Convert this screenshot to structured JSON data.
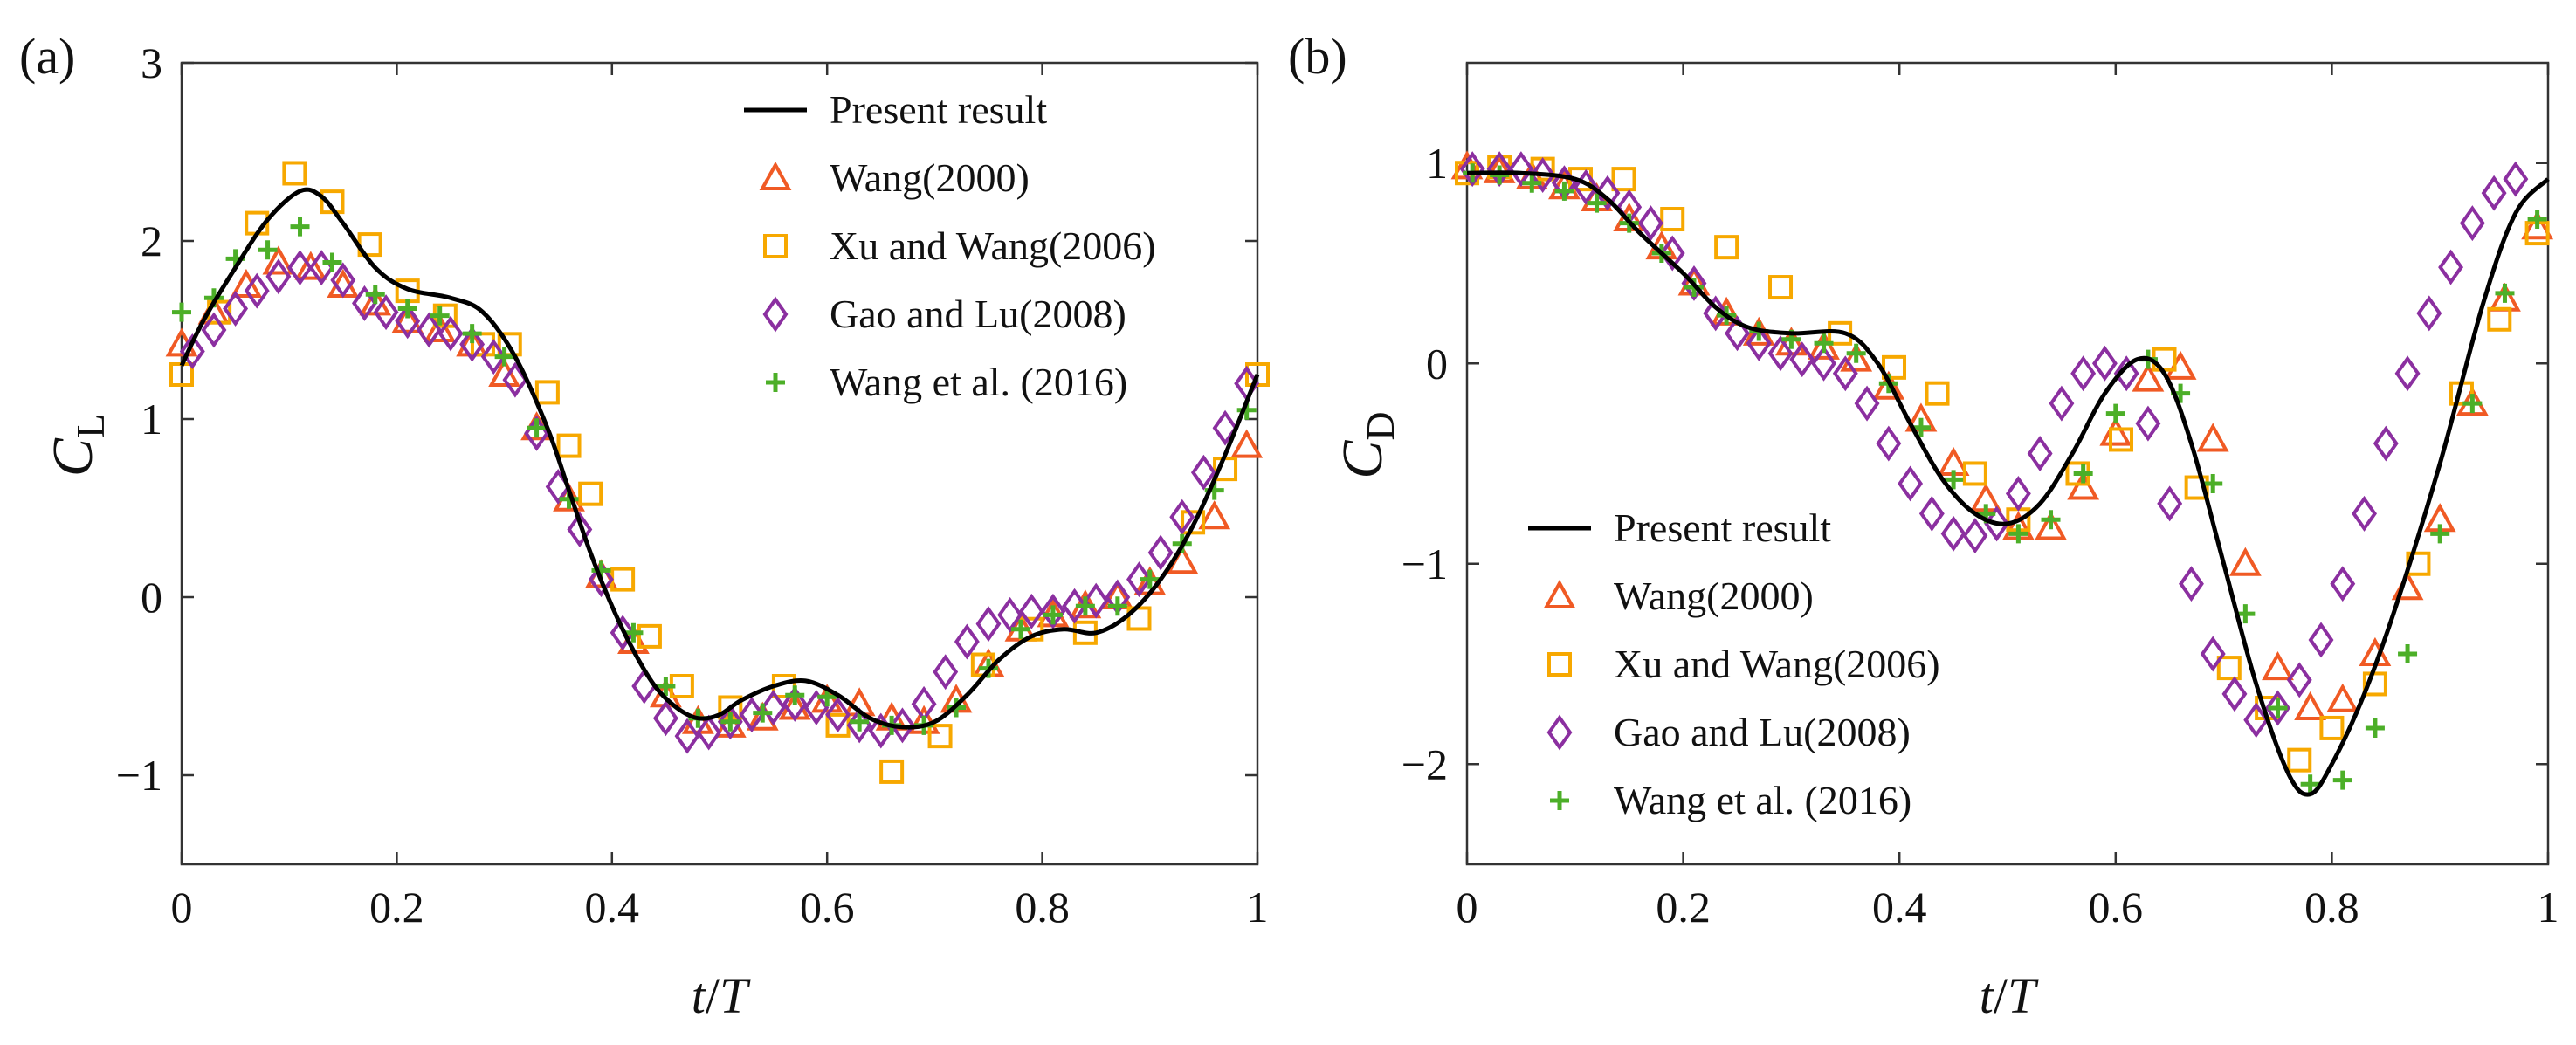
{
  "chart_data": [
    {
      "type": "line",
      "panel_label": "(a)",
      "ylabel_main": "C",
      "ylabel_sub": "L",
      "xlabel_t": "t",
      "xlabel_sep": "/",
      "xlabel_T": "T",
      "xlim": [
        0,
        1
      ],
      "ylim": [
        -1.5,
        3
      ],
      "xticks": [
        0,
        0.2,
        0.4,
        0.6,
        0.8,
        1
      ],
      "xtick_labels": [
        "0",
        "0.2",
        "0.4",
        "0.6",
        "0.8",
        "1"
      ],
      "yticks": [
        -1,
        0,
        1,
        2,
        3
      ],
      "ytick_labels": [
        "−1",
        "0",
        "1",
        "2",
        "3"
      ],
      "legend_position": "top-right",
      "series": [
        {
          "name": "Present result",
          "marker": "line",
          "color": "#000000",
          "x": [
            0,
            0.02,
            0.05,
            0.08,
            0.11,
            0.13,
            0.15,
            0.18,
            0.21,
            0.25,
            0.28,
            0.31,
            0.34,
            0.36,
            0.38,
            0.4,
            0.42,
            0.44,
            0.46,
            0.48,
            0.5,
            0.52,
            0.55,
            0.58,
            0.61,
            0.64,
            0.67,
            0.7,
            0.73,
            0.76,
            0.79,
            0.82,
            0.85,
            0.88,
            0.91,
            0.94,
            0.97,
            1.0
          ],
          "y": [
            1.3,
            1.55,
            1.85,
            2.12,
            2.28,
            2.25,
            2.1,
            1.85,
            1.73,
            1.68,
            1.6,
            1.35,
            0.95,
            0.6,
            0.25,
            -0.05,
            -0.3,
            -0.5,
            -0.62,
            -0.68,
            -0.66,
            -0.58,
            -0.5,
            -0.47,
            -0.55,
            -0.68,
            -0.73,
            -0.7,
            -0.55,
            -0.35,
            -0.22,
            -0.18,
            -0.2,
            -0.1,
            0.1,
            0.4,
            0.8,
            1.25
          ]
        },
        {
          "name": "Wang(2000)",
          "marker": "triangle",
          "color": "#f05a24",
          "x": [
            0,
            0.03,
            0.06,
            0.09,
            0.12,
            0.15,
            0.18,
            0.21,
            0.24,
            0.27,
            0.3,
            0.33,
            0.36,
            0.39,
            0.42,
            0.45,
            0.48,
            0.51,
            0.54,
            0.57,
            0.6,
            0.63,
            0.66,
            0.69,
            0.72,
            0.75,
            0.78,
            0.81,
            0.84,
            0.87,
            0.9,
            0.93,
            0.96,
            0.99
          ],
          "y": [
            1.42,
            1.6,
            1.75,
            1.88,
            1.85,
            1.75,
            1.65,
            1.55,
            1.5,
            1.42,
            1.25,
            0.95,
            0.55,
            0.12,
            -0.25,
            -0.55,
            -0.7,
            -0.72,
            -0.68,
            -0.62,
            -0.58,
            -0.6,
            -0.68,
            -0.7,
            -0.58,
            -0.38,
            -0.18,
            -0.1,
            -0.05,
            0.0,
            0.08,
            0.2,
            0.45,
            0.85
          ]
        },
        {
          "name": "Xu and Wang(2006)",
          "marker": "square",
          "color": "#f7a800",
          "x": [
            0,
            0.035,
            0.07,
            0.105,
            0.14,
            0.175,
            0.21,
            0.245,
            0.28,
            0.305,
            0.34,
            0.36,
            0.38,
            0.41,
            0.435,
            0.465,
            0.51,
            0.56,
            0.61,
            0.66,
            0.705,
            0.745,
            0.79,
            0.84,
            0.89,
            0.94,
            0.97,
            1.0
          ],
          "y": [
            1.25,
            1.6,
            2.1,
            2.38,
            2.22,
            1.98,
            1.72,
            1.58,
            1.42,
            1.42,
            1.15,
            0.85,
            0.58,
            0.1,
            -0.22,
            -0.5,
            -0.62,
            -0.5,
            -0.72,
            -0.98,
            -0.78,
            -0.38,
            -0.18,
            -0.2,
            -0.12,
            0.42,
            0.72,
            1.25
          ]
        },
        {
          "name": "Gao and Lu(2008)",
          "marker": "diamond",
          "color": "#8b2fa0",
          "x": [
            0.01,
            0.03,
            0.05,
            0.07,
            0.09,
            0.11,
            0.13,
            0.15,
            0.17,
            0.19,
            0.21,
            0.23,
            0.25,
            0.27,
            0.29,
            0.31,
            0.33,
            0.35,
            0.37,
            0.39,
            0.41,
            0.43,
            0.45,
            0.47,
            0.49,
            0.51,
            0.53,
            0.55,
            0.57,
            0.59,
            0.61,
            0.63,
            0.65,
            0.67,
            0.69,
            0.71,
            0.73,
            0.75,
            0.77,
            0.79,
            0.81,
            0.83,
            0.85,
            0.87,
            0.89,
            0.91,
            0.93,
            0.95,
            0.97,
            0.99
          ],
          "y": [
            1.38,
            1.5,
            1.62,
            1.72,
            1.8,
            1.85,
            1.85,
            1.78,
            1.65,
            1.6,
            1.55,
            1.5,
            1.48,
            1.42,
            1.35,
            1.22,
            0.92,
            0.62,
            0.38,
            0.1,
            -0.2,
            -0.5,
            -0.68,
            -0.78,
            -0.76,
            -0.7,
            -0.66,
            -0.62,
            -0.6,
            -0.62,
            -0.66,
            -0.72,
            -0.75,
            -0.72,
            -0.6,
            -0.42,
            -0.25,
            -0.15,
            -0.1,
            -0.08,
            -0.08,
            -0.05,
            -0.02,
            0.0,
            0.1,
            0.25,
            0.45,
            0.7,
            0.95,
            1.2
          ]
        },
        {
          "name": "Wang et al. (2016)",
          "marker": "plus",
          "color": "#4caf28",
          "x": [
            0,
            0.03,
            0.05,
            0.08,
            0.11,
            0.14,
            0.18,
            0.21,
            0.24,
            0.27,
            0.3,
            0.33,
            0.36,
            0.39,
            0.42,
            0.45,
            0.48,
            0.51,
            0.54,
            0.57,
            0.6,
            0.63,
            0.66,
            0.69,
            0.72,
            0.75,
            0.78,
            0.81,
            0.84,
            0.87,
            0.9,
            0.93,
            0.96,
            0.99
          ],
          "y": [
            1.6,
            1.68,
            1.9,
            1.95,
            2.08,
            1.88,
            1.7,
            1.62,
            1.58,
            1.48,
            1.35,
            0.95,
            0.55,
            0.15,
            -0.2,
            -0.5,
            -0.68,
            -0.7,
            -0.65,
            -0.55,
            -0.56,
            -0.7,
            -0.72,
            -0.72,
            -0.62,
            -0.4,
            -0.18,
            -0.1,
            -0.05,
            -0.05,
            0.1,
            0.3,
            0.6,
            1.05
          ]
        }
      ]
    },
    {
      "type": "line",
      "panel_label": "(b)",
      "ylabel_main": "C",
      "ylabel_sub": "D",
      "xlabel_t": "t",
      "xlabel_sep": "/",
      "xlabel_T": "T",
      "xlim": [
        0,
        1
      ],
      "ylim": [
        -2.5,
        1.5
      ],
      "xticks": [
        0,
        0.2,
        0.4,
        0.6,
        0.8,
        1
      ],
      "xtick_labels": [
        "0",
        "0.2",
        "0.4",
        "0.6",
        "0.8",
        "1"
      ],
      "yticks": [
        -2,
        -1,
        0,
        1
      ],
      "ytick_labels": [
        "−2",
        "−1",
        "0",
        "1"
      ],
      "legend_position": "bottom-left",
      "series": [
        {
          "name": "Present result",
          "marker": "line",
          "color": "#000000",
          "x": [
            0,
            0.05,
            0.1,
            0.13,
            0.16,
            0.2,
            0.23,
            0.26,
            0.3,
            0.35,
            0.38,
            0.41,
            0.44,
            0.47,
            0.5,
            0.53,
            0.56,
            0.59,
            0.62,
            0.645,
            0.67,
            0.7,
            0.73,
            0.76,
            0.78,
            0.8,
            0.83,
            0.86,
            0.9,
            0.94,
            0.97,
            1.0
          ],
          "y": [
            0.95,
            0.95,
            0.92,
            0.82,
            0.65,
            0.45,
            0.28,
            0.18,
            0.15,
            0.15,
            0.0,
            -0.3,
            -0.58,
            -0.75,
            -0.8,
            -0.7,
            -0.45,
            -0.15,
            0.02,
            -0.05,
            -0.4,
            -1.0,
            -1.6,
            -2.05,
            -2.15,
            -2.0,
            -1.65,
            -1.2,
            -0.5,
            0.3,
            0.75,
            0.92
          ]
        },
        {
          "name": "Wang(2000)",
          "marker": "triangle",
          "color": "#f05a24",
          "x": [
            0,
            0.03,
            0.06,
            0.09,
            0.12,
            0.15,
            0.18,
            0.21,
            0.24,
            0.27,
            0.3,
            0.33,
            0.36,
            0.39,
            0.42,
            0.45,
            0.48,
            0.51,
            0.54,
            0.57,
            0.6,
            0.63,
            0.66,
            0.69,
            0.72,
            0.75,
            0.78,
            0.81,
            0.84,
            0.87,
            0.9,
            0.93,
            0.96,
            0.99
          ],
          "y": [
            0.98,
            0.96,
            0.93,
            0.88,
            0.82,
            0.72,
            0.58,
            0.4,
            0.25,
            0.15,
            0.1,
            0.08,
            0.02,
            -0.12,
            -0.28,
            -0.5,
            -0.68,
            -0.82,
            -0.82,
            -0.62,
            -0.35,
            -0.08,
            -0.02,
            -0.38,
            -1.0,
            -1.52,
            -1.72,
            -1.68,
            -1.45,
            -1.12,
            -0.78,
            -0.2,
            0.32,
            0.68
          ]
        },
        {
          "name": "Xu and Wang(2006)",
          "marker": "square",
          "color": "#f7a800",
          "x": [
            0,
            0.03,
            0.07,
            0.105,
            0.145,
            0.19,
            0.24,
            0.29,
            0.345,
            0.395,
            0.435,
            0.47,
            0.51,
            0.565,
            0.605,
            0.645,
            0.675,
            0.705,
            0.74,
            0.77,
            0.8,
            0.84,
            0.88,
            0.92,
            0.955,
            0.99
          ],
          "y": [
            0.95,
            0.98,
            0.97,
            0.92,
            0.92,
            0.72,
            0.58,
            0.38,
            0.15,
            -0.02,
            -0.15,
            -0.55,
            -0.78,
            -0.55,
            -0.38,
            0.02,
            -0.62,
            -1.52,
            -1.72,
            -1.98,
            -1.82,
            -1.6,
            -1.0,
            -0.15,
            0.22,
            0.65
          ]
        },
        {
          "name": "Gao and Lu(2008)",
          "marker": "diamond",
          "color": "#8b2fa0",
          "x": [
            0.005,
            0.03,
            0.05,
            0.07,
            0.09,
            0.11,
            0.13,
            0.15,
            0.17,
            0.19,
            0.21,
            0.23,
            0.25,
            0.27,
            0.29,
            0.31,
            0.33,
            0.35,
            0.37,
            0.39,
            0.41,
            0.43,
            0.45,
            0.47,
            0.49,
            0.51,
            0.53,
            0.55,
            0.57,
            0.59,
            0.61,
            0.63,
            0.65,
            0.67,
            0.69,
            0.71,
            0.73,
            0.75,
            0.77,
            0.79,
            0.81,
            0.83,
            0.85,
            0.87,
            0.89,
            0.91,
            0.93,
            0.95,
            0.97
          ],
          "y": [
            0.97,
            0.97,
            0.97,
            0.94,
            0.9,
            0.88,
            0.85,
            0.78,
            0.7,
            0.55,
            0.4,
            0.25,
            0.15,
            0.1,
            0.05,
            0.02,
            0.0,
            -0.05,
            -0.2,
            -0.4,
            -0.6,
            -0.75,
            -0.85,
            -0.86,
            -0.8,
            -0.65,
            -0.45,
            -0.2,
            -0.05,
            0.0,
            -0.05,
            -0.3,
            -0.7,
            -1.1,
            -1.45,
            -1.65,
            -1.78,
            -1.72,
            -1.58,
            -1.38,
            -1.1,
            -0.75,
            -0.4,
            -0.05,
            0.25,
            0.48,
            0.7,
            0.85,
            0.92
          ]
        },
        {
          "name": "Wang et al. (2016)",
          "marker": "plus",
          "color": "#4caf28",
          "x": [
            0.005,
            0.03,
            0.06,
            0.09,
            0.12,
            0.15,
            0.18,
            0.21,
            0.24,
            0.27,
            0.3,
            0.33,
            0.36,
            0.39,
            0.42,
            0.45,
            0.48,
            0.51,
            0.54,
            0.57,
            0.6,
            0.63,
            0.66,
            0.69,
            0.72,
            0.75,
            0.78,
            0.81,
            0.84,
            0.87,
            0.9,
            0.93,
            0.96,
            0.99
          ],
          "y": [
            0.95,
            0.94,
            0.9,
            0.86,
            0.8,
            0.7,
            0.55,
            0.38,
            0.24,
            0.16,
            0.12,
            0.1,
            0.05,
            -0.1,
            -0.32,
            -0.58,
            -0.75,
            -0.85,
            -0.78,
            -0.55,
            -0.25,
            0.02,
            -0.15,
            -0.6,
            -1.25,
            -1.72,
            -2.1,
            -2.08,
            -1.82,
            -1.45,
            -0.85,
            -0.2,
            0.35,
            0.72
          ]
        }
      ]
    }
  ]
}
